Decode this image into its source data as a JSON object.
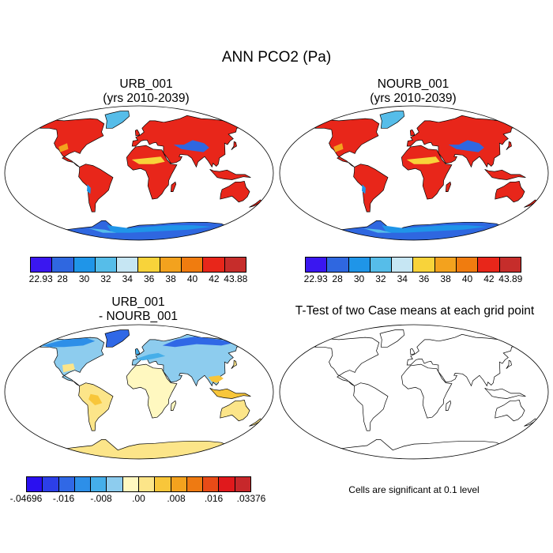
{
  "title": "ANN PCO2 (Pa)",
  "panels": [
    {
      "id": "urb",
      "title_line1": "URB_001",
      "title_line2": "(yrs 2010-2039)",
      "palette": "warm",
      "colorbar": {
        "labels": [
          "22.93",
          "28",
          "30",
          "32",
          "34",
          "36",
          "38",
          "40",
          "42",
          "43.88"
        ],
        "colors": [
          "#3a17f0",
          "#2f67e0",
          "#1f95e8",
          "#56bde9",
          "#c6e6f3",
          "#f8d33a",
          "#f3a21e",
          "#f07c0f",
          "#e8261a",
          "#c62d2b"
        ]
      }
    },
    {
      "id": "nourb",
      "title_line1": "NOURB_001",
      "title_line2": "(yrs 2010-2039)",
      "palette": "warm",
      "colorbar": {
        "labels": [
          "22.93",
          "28",
          "30",
          "32",
          "34",
          "36",
          "38",
          "40",
          "42",
          "43.89"
        ],
        "colors": [
          "#3a17f0",
          "#2f67e0",
          "#1f95e8",
          "#56bde9",
          "#c6e6f3",
          "#f8d33a",
          "#f3a21e",
          "#f07c0f",
          "#e8261a",
          "#c62d2b"
        ]
      }
    },
    {
      "id": "diff",
      "title_line1": "URB_001",
      "title_line2": "- NOURB_001",
      "palette": "diverging",
      "colorbar": {
        "labels": [
          "-.04696",
          "-.016",
          "-.008",
          ".00",
          ".008",
          ".016",
          ".03376"
        ],
        "colors": [
          "#2a10f0",
          "#2c3fe8",
          "#3068e6",
          "#2d8fe8",
          "#45aee9",
          "#8dccee",
          "#fff8c0",
          "#fce589",
          "#f8c63a",
          "#f3a21e",
          "#ee7a12",
          "#e84b17",
          "#e0191c",
          "#c7282b"
        ]
      }
    },
    {
      "id": "ttest",
      "title": "T-Test of two Case means at each grid point",
      "note": "Cells are significant at 0.1 level",
      "palette": "none"
    }
  ]
}
